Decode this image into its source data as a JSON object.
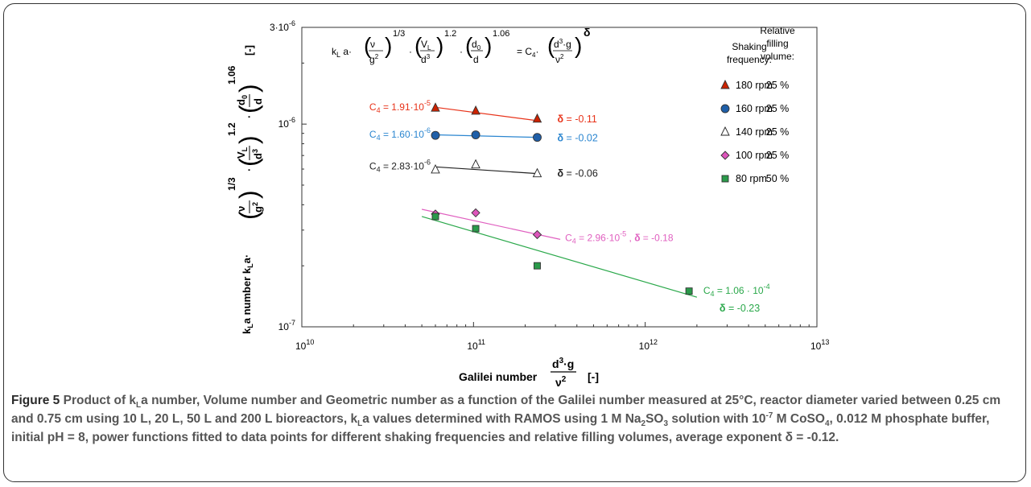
{
  "chart_data": {
    "type": "scatter",
    "x_scale": "log",
    "y_scale": "log",
    "xlim": [
      10000000000.0,
      10000000000000.0
    ],
    "ylim": [
      1e-07,
      3e-06
    ],
    "x_ticks": [
      {
        "value": 10000000000.0,
        "base": "10",
        "exp": "10"
      },
      {
        "value": 100000000000.0,
        "base": "10",
        "exp": "11"
      },
      {
        "value": 1000000000000.0,
        "base": "10",
        "exp": "12"
      },
      {
        "value": 10000000000000.0,
        "base": "10",
        "exp": "13"
      }
    ],
    "y_ticks": [
      {
        "value": 1e-07,
        "base": "10",
        "exp": "-7"
      },
      {
        "value": 1e-06,
        "base": "10",
        "exp": "-6"
      },
      {
        "value": 3e-06,
        "base": "3·10",
        "exp": "-6"
      }
    ],
    "xlabel": {
      "text": "Galilei number",
      "unit": "[-]"
    },
    "ylabel": {
      "text": "kLa number",
      "unit": "[-]"
    },
    "grid": false,
    "legend": {
      "position": "top-right",
      "header_col1": [
        "Shaking",
        "frequency:"
      ],
      "header_col2": [
        "Relative",
        "filling",
        "volume:"
      ],
      "entries": [
        {
          "marker": "triangle",
          "fill": "#cc2200",
          "label": "180 rpm",
          "volume": "25 %"
        },
        {
          "marker": "circle",
          "fill": "#1f5fa8",
          "label": "160 rpm",
          "volume": "25 %"
        },
        {
          "marker": "triangle",
          "fill": "#ffffff",
          "label": "140 rpm",
          "volume": "25 %"
        },
        {
          "marker": "diamond",
          "fill": "#dd55bb",
          "label": "100 rpm",
          "volume": "25 %"
        },
        {
          "marker": "square",
          "fill": "#2a9a4a",
          "label": "80 rpm",
          "volume": "50 %"
        }
      ]
    },
    "series": [
      {
        "name": "180 rpm",
        "color": "#e8331a",
        "marker": "triangle",
        "fill": "#cc2200",
        "x": [
          60000000000.0,
          103000000000.0,
          235000000000.0
        ],
        "y": [
          1.2e-06,
          1.16e-06,
          1.06e-06
        ],
        "fit": {
          "x": [
            60000000000.0,
            235000000000.0
          ],
          "y": [
            1.21e-06,
            1.04e-06
          ]
        },
        "c4": {
          "coef": "C4 = 1.91·10",
          "exp": "-5"
        },
        "delta": "δ = -0.11"
      },
      {
        "name": "160 rpm",
        "color": "#2b86d0",
        "marker": "circle",
        "fill": "#1f5fa8",
        "x": [
          60000000000.0,
          103000000000.0,
          235000000000.0
        ],
        "y": [
          8.8e-07,
          8.85e-07,
          8.6e-07
        ],
        "fit": {
          "x": [
            60000000000.0,
            235000000000.0
          ],
          "y": [
            8.85e-07,
            8.6e-07
          ]
        },
        "c4": {
          "coef": "C4 = 1.60·10",
          "exp": "-6"
        },
        "delta": "δ = -0.02"
      },
      {
        "name": "140 rpm",
        "color": "#222222",
        "marker": "triangle",
        "fill": "#ffffff",
        "x": [
          60000000000.0,
          103000000000.0,
          235000000000.0
        ],
        "y": [
          5.95e-07,
          6.3e-07,
          5.7e-07
        ],
        "fit": {
          "x": [
            60000000000.0,
            235000000000.0
          ],
          "y": [
            6.15e-07,
            5.7e-07
          ]
        },
        "c4": {
          "coef": "C4 = 2.83·10",
          "exp": "-6"
        },
        "delta": "δ = -0.06"
      },
      {
        "name": "100 rpm",
        "color": "#e060c0",
        "marker": "diamond",
        "fill": "#dd55bb",
        "x": [
          60000000000.0,
          103000000000.0,
          235000000000.0
        ],
        "y": [
          3.6e-07,
          3.65e-07,
          2.85e-07
        ],
        "fit": {
          "x": [
            50000000000.0,
            320000000000.0
          ],
          "y": [
            3.8e-07,
            2.7e-07
          ]
        },
        "c4": {
          "coef": "C4 = 2.96·10",
          "exp": "-5",
          "sep": " , "
        },
        "delta": "δ = -0.18"
      },
      {
        "name": "80 rpm",
        "color": "#2aa84a",
        "marker": "square",
        "fill": "#2a9a4a",
        "x": [
          60000000000.0,
          103000000000.0,
          235000000000.0,
          1800000000000.0
        ],
        "y": [
          3.5e-07,
          3.05e-07,
          2e-07,
          1.5e-07
        ],
        "fit": {
          "x": [
            50000000000.0,
            2000000000000.0
          ],
          "y": [
            3.5e-07,
            1.4e-07
          ]
        },
        "c4": {
          "coef": "C4 = 1.06 · 10",
          "exp": "-4"
        },
        "delta": "δ = -0.23"
      }
    ],
    "annotations": {
      "equation": "kLa·(ν/g²)^(1/3)·(VL/d³)^1.2·(d0/d)^1.06 = C4·(d³·g/ν²)^δ"
    }
  },
  "caption": {
    "lead": "Figure 5",
    "text": "Product of kLa number, Volume number and Geometric number as a function of the Galilei number measured at 25°C, reactor diameter varied between 0.25 cm and 0.75 cm using 10 L, 20 L, 50 L and 200 L bioreactors, kLa values determined with RAMOS using 1 M Na2SO3 solution with 10-7 M CoSO4, 0.012 M phosphate buffer, initial pH = 8, power functions fitted to data points for different shaking frequencies and relative filling volumes, average exponent δ = -0.12."
  }
}
